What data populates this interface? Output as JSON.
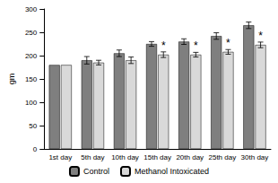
{
  "chart_data": {
    "type": "bar",
    "categories": [
      "1st day",
      "5th day",
      "10th day",
      "15th day",
      "20th day",
      "25th day",
      "30th day"
    ],
    "series": [
      {
        "name": "Control",
        "color": "#7f7f7f",
        "values": [
          180,
          190,
          205,
          225,
          230,
          242,
          265
        ],
        "errors": [
          0,
          8,
          7,
          5,
          6,
          7,
          7
        ]
      },
      {
        "name": "Methanol Intoxicated",
        "color": "#d9d9d9",
        "values": [
          180,
          185,
          190,
          202,
          202,
          208,
          223
        ],
        "errors": [
          0,
          5,
          7,
          6,
          5,
          5,
          6
        ]
      }
    ],
    "y_label": "gm",
    "ylim": [
      0,
      300
    ],
    "yticks": [
      0,
      50,
      100,
      150,
      200,
      250,
      300
    ],
    "grid": false,
    "legend": "bottom",
    "annotations": [
      {
        "category": "15th day",
        "series": "Methanol Intoxicated",
        "text": "*"
      },
      {
        "category": "20th day",
        "series": "Methanol Intoxicated",
        "text": "*"
      },
      {
        "category": "25th day",
        "series": "Methanol Intoxicated",
        "text": "*"
      },
      {
        "category": "30th day",
        "series": "Methanol Intoxicated",
        "text": "*"
      }
    ]
  }
}
